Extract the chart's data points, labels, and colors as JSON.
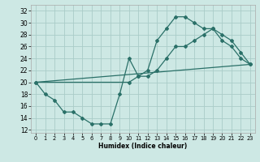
{
  "xlabel": "Humidex (Indice chaleur)",
  "bg_color": "#cde8e4",
  "line_color": "#2a7068",
  "grid_color": "#aaccc8",
  "xlim": [
    -0.5,
    23.5
  ],
  "ylim": [
    11.5,
    33.0
  ],
  "xticks": [
    0,
    1,
    2,
    3,
    4,
    5,
    6,
    7,
    8,
    9,
    10,
    11,
    12,
    13,
    14,
    15,
    16,
    17,
    18,
    19,
    20,
    21,
    22,
    23
  ],
  "yticks": [
    12,
    14,
    16,
    18,
    20,
    22,
    24,
    26,
    28,
    30,
    32
  ],
  "line1_x": [
    0,
    1,
    2,
    3,
    4,
    5,
    6,
    7,
    8,
    9,
    10,
    11,
    12,
    13,
    14,
    15,
    16,
    17,
    18,
    19,
    20,
    21,
    22,
    23
  ],
  "line1_y": [
    20,
    18,
    17,
    15,
    15,
    14,
    13,
    13,
    13,
    18,
    24,
    21,
    22,
    27,
    29,
    31,
    31,
    30,
    29,
    29,
    27,
    26,
    24,
    23
  ],
  "line2_x": [
    0,
    10,
    11,
    12,
    13,
    14,
    15,
    16,
    17,
    18,
    19,
    20,
    21,
    22,
    23
  ],
  "line2_y": [
    20,
    20,
    21,
    21,
    22,
    24,
    26,
    26,
    27,
    28,
    29,
    28,
    27,
    25,
    23
  ],
  "line3_x": [
    0,
    23
  ],
  "line3_y": [
    20,
    23
  ]
}
